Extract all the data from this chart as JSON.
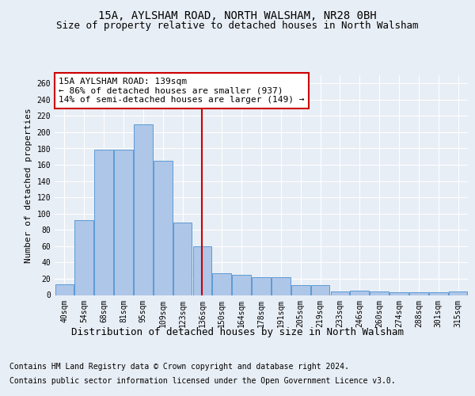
{
  "title1": "15A, AYLSHAM ROAD, NORTH WALSHAM, NR28 0BH",
  "title2": "Size of property relative to detached houses in North Walsham",
  "xlabel": "Distribution of detached houses by size in North Walsham",
  "ylabel": "Number of detached properties",
  "footer1": "Contains HM Land Registry data © Crown copyright and database right 2024.",
  "footer2": "Contains public sector information licensed under the Open Government Licence v3.0.",
  "categories": [
    "40sqm",
    "54sqm",
    "68sqm",
    "81sqm",
    "95sqm",
    "109sqm",
    "123sqm",
    "136sqm",
    "150sqm",
    "164sqm",
    "178sqm",
    "191sqm",
    "205sqm",
    "219sqm",
    "233sqm",
    "246sqm",
    "260sqm",
    "274sqm",
    "288sqm",
    "301sqm",
    "315sqm"
  ],
  "values": [
    13,
    92,
    179,
    179,
    210,
    165,
    89,
    60,
    27,
    25,
    22,
    22,
    12,
    12,
    4,
    5,
    4,
    3,
    3,
    3,
    4
  ],
  "bar_color": "#aec6e8",
  "bar_edge_color": "#5b9bd5",
  "vline_index": 7,
  "annotation_line1": "15A AYLSHAM ROAD: 139sqm",
  "annotation_line2": "← 86% of detached houses are smaller (937)",
  "annotation_line3": "14% of semi-detached houses are larger (149) →",
  "annotation_box_color": "#ffffff",
  "annotation_box_edge_color": "#cc0000",
  "vline_color": "#cc0000",
  "ylim": [
    0,
    270
  ],
  "yticks": [
    0,
    20,
    40,
    60,
    80,
    100,
    120,
    140,
    160,
    180,
    200,
    220,
    240,
    260
  ],
  "bg_color": "#e8eef5",
  "plot_bg_color": "#e8eef5",
  "grid_color": "#ffffff",
  "title1_fontsize": 10,
  "title2_fontsize": 9,
  "xlabel_fontsize": 9,
  "ylabel_fontsize": 8,
  "tick_fontsize": 7,
  "annotation_fontsize": 8,
  "footer_fontsize": 7
}
